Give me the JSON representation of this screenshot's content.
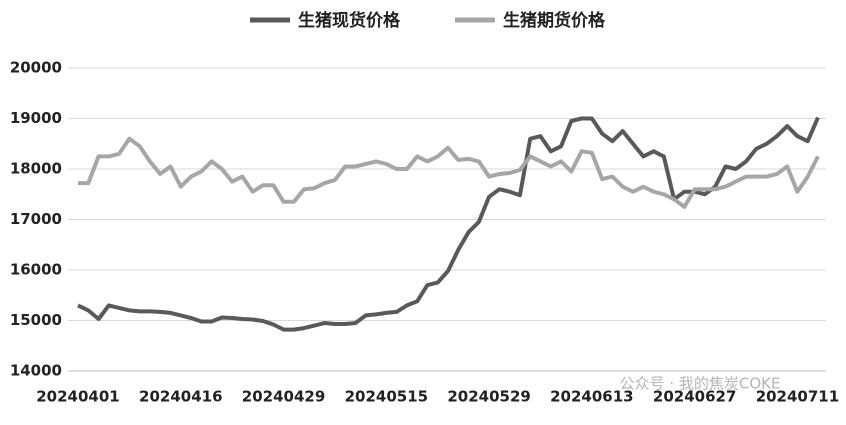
{
  "chart_data": {
    "type": "line",
    "categories": [
      "20240401",
      null,
      null,
      null,
      null,
      null,
      null,
      null,
      null,
      null,
      "20240416",
      null,
      null,
      null,
      null,
      null,
      null,
      null,
      null,
      null,
      "20240429",
      null,
      null,
      null,
      null,
      null,
      null,
      null,
      null,
      null,
      "20240515",
      null,
      null,
      null,
      null,
      null,
      null,
      null,
      null,
      null,
      "20240529",
      null,
      null,
      null,
      null,
      null,
      null,
      null,
      null,
      null,
      "20240613",
      null,
      null,
      null,
      null,
      null,
      null,
      null,
      null,
      null,
      "20240627",
      null,
      null,
      null,
      null,
      null,
      null,
      null,
      null,
      null,
      "20240711",
      null,
      null
    ],
    "series": [
      {
        "name": "生猪现货价格",
        "color": "#595959",
        "values": [
          15300,
          15200,
          15030,
          15300,
          15250,
          15200,
          15180,
          15180,
          15170,
          15150,
          15100,
          15050,
          14980,
          14980,
          15060,
          15050,
          15030,
          15020,
          14990,
          14920,
          14820,
          14820,
          14850,
          14900,
          14950,
          14930,
          14930,
          14950,
          15100,
          15120,
          15150,
          15170,
          15300,
          15380,
          15700,
          15750,
          15980,
          16400,
          16750,
          16950,
          17450,
          17600,
          17550,
          17480,
          18600,
          18650,
          18350,
          18450,
          18950,
          19000,
          19000,
          18700,
          18550,
          18750,
          18500,
          18250,
          18350,
          18250,
          17400,
          17550,
          17550,
          17500,
          17650,
          18050,
          18000,
          18150,
          18400,
          18500,
          18650,
          18850,
          18650,
          18550,
          19020
        ]
      },
      {
        "name": "生猪期货价格",
        "color": "#a6a6a6",
        "values": [
          17720,
          17720,
          18250,
          18250,
          18300,
          18600,
          18450,
          18150,
          17900,
          18050,
          17650,
          17850,
          17950,
          18150,
          18000,
          17750,
          17850,
          17550,
          17680,
          17680,
          17350,
          17350,
          17600,
          17620,
          17720,
          17780,
          18050,
          18050,
          18100,
          18150,
          18100,
          18000,
          18000,
          18250,
          18150,
          18250,
          18420,
          18180,
          18200,
          18150,
          17850,
          17900,
          17920,
          17980,
          18250,
          18150,
          18050,
          18150,
          17950,
          18350,
          18320,
          17800,
          17850,
          17650,
          17550,
          17650,
          17550,
          17500,
          17400,
          17250,
          17600,
          17600,
          17600,
          17650,
          17750,
          17850,
          17850,
          17850,
          17900,
          18050,
          17550,
          17850,
          18250
        ]
      }
    ],
    "ylim": [
      14000,
      20000
    ],
    "yticks": [
      14000,
      15000,
      16000,
      17000,
      18000,
      19000,
      20000
    ],
    "grid": true,
    "legend": "top",
    "watermark": "公众号 · 我的焦炭COKE"
  }
}
